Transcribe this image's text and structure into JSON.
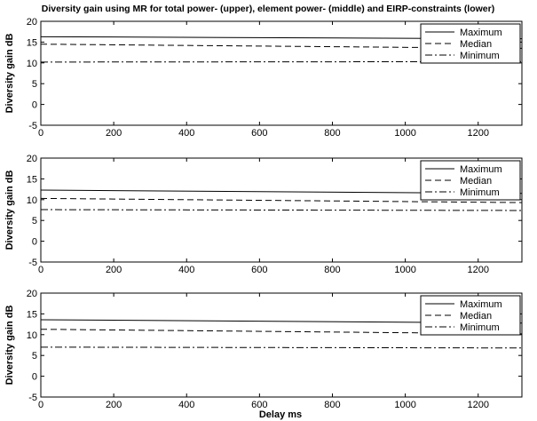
{
  "figure": {
    "title": "Diversity gain using MR for total power- (upper), element power- (middle) and EIRP-constraints (lower)",
    "xlabel": "Delay ms"
  },
  "chart_data": [
    {
      "type": "line",
      "title": "",
      "xlabel": "",
      "ylabel": "Diversity gain dB",
      "xlim": [
        0,
        1320
      ],
      "ylim": [
        -5,
        20
      ],
      "xticks": [
        0,
        200,
        400,
        600,
        800,
        1000,
        1200
      ],
      "yticks": [
        -5,
        0,
        5,
        10,
        15,
        20
      ],
      "grid": false,
      "legend_position": "top-right",
      "series": [
        {
          "name": "Maximum",
          "style": "solid",
          "x": [
            0,
            1320
          ],
          "y": [
            16.3,
            15.8
          ]
        },
        {
          "name": "Median",
          "style": "dashed",
          "x": [
            0,
            1320
          ],
          "y": [
            14.5,
            13.5
          ]
        },
        {
          "name": "Minimum",
          "style": "dashdot",
          "x": [
            0,
            1320
          ],
          "y": [
            10.2,
            10.3
          ]
        }
      ]
    },
    {
      "type": "line",
      "title": "",
      "xlabel": "",
      "ylabel": "Diversity gain dB",
      "xlim": [
        0,
        1320
      ],
      "ylim": [
        -5,
        20
      ],
      "xticks": [
        0,
        200,
        400,
        600,
        800,
        1000,
        1200
      ],
      "yticks": [
        -5,
        0,
        5,
        10,
        15,
        20
      ],
      "grid": false,
      "legend_position": "top-right",
      "series": [
        {
          "name": "Maximum",
          "style": "solid",
          "x": [
            0,
            1320
          ],
          "y": [
            12.3,
            11.5
          ]
        },
        {
          "name": "Median",
          "style": "dashed",
          "x": [
            0,
            1320
          ],
          "y": [
            10.3,
            9.3
          ]
        },
        {
          "name": "Minimum",
          "style": "dashdot",
          "x": [
            0,
            1320
          ],
          "y": [
            7.6,
            7.4
          ]
        }
      ]
    },
    {
      "type": "line",
      "title": "",
      "xlabel": "Delay ms",
      "ylabel": "Diversity gain dB",
      "xlim": [
        0,
        1320
      ],
      "ylim": [
        -5,
        20
      ],
      "xticks": [
        0,
        200,
        400,
        600,
        800,
        1000,
        1200
      ],
      "yticks": [
        -5,
        0,
        5,
        10,
        15,
        20
      ],
      "grid": false,
      "legend_position": "top-right",
      "series": [
        {
          "name": "Maximum",
          "style": "solid",
          "x": [
            0,
            1320
          ],
          "y": [
            13.6,
            12.8
          ]
        },
        {
          "name": "Median",
          "style": "dashed",
          "x": [
            0,
            1320
          ],
          "y": [
            11.3,
            10.2
          ]
        },
        {
          "name": "Minimum",
          "style": "dashdot",
          "x": [
            0,
            1320
          ],
          "y": [
            7.0,
            6.8
          ]
        }
      ]
    }
  ]
}
